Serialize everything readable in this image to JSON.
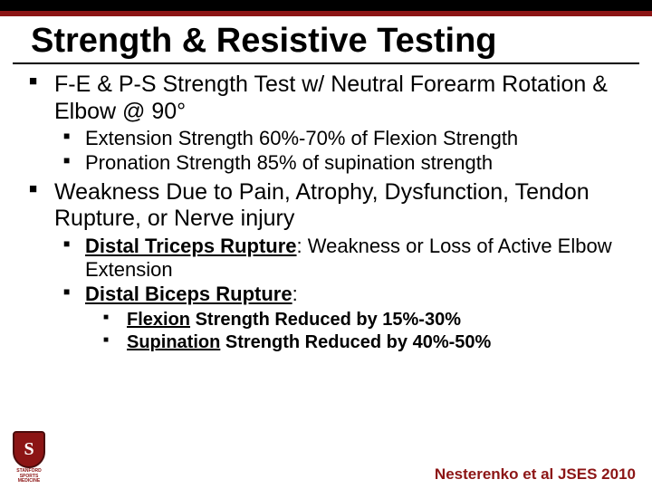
{
  "colors": {
    "accent": "#8c1515",
    "text": "#000000",
    "background": "#ffffff"
  },
  "title": "Strength & Resistive Testing",
  "bullets": {
    "b1": "F-E & P-S Strength Test w/ Neutral Forearm Rotation & Elbow @ 90°",
    "b1_1": "Extension Strength 60%-70% of Flexion Strength",
    "b1_2": "Pronation Strength 85% of supination strength",
    "b2": "Weakness Due to Pain, Atrophy, Dysfunction, Tendon Rupture, or Nerve injury",
    "b2_1_label": "Distal Triceps Rupture",
    "b2_1_rest": ":  Weakness or Loss of Active Elbow Extension",
    "b2_2_label": "Distal Biceps Rupture",
    "b2_2_rest": ":",
    "b2_2_1_u": "Flexion",
    "b2_2_1_rest": " Strength Reduced by 15%-30%",
    "b2_2_2_u": "Supination",
    "b2_2_2_rest": " Strength Reduced by 40%-50%"
  },
  "citation": "Nesterenko et al JSES 2010",
  "logo": {
    "letter": "S",
    "line1": "STANFORD",
    "line2": "SPORTS MEDICINE"
  }
}
